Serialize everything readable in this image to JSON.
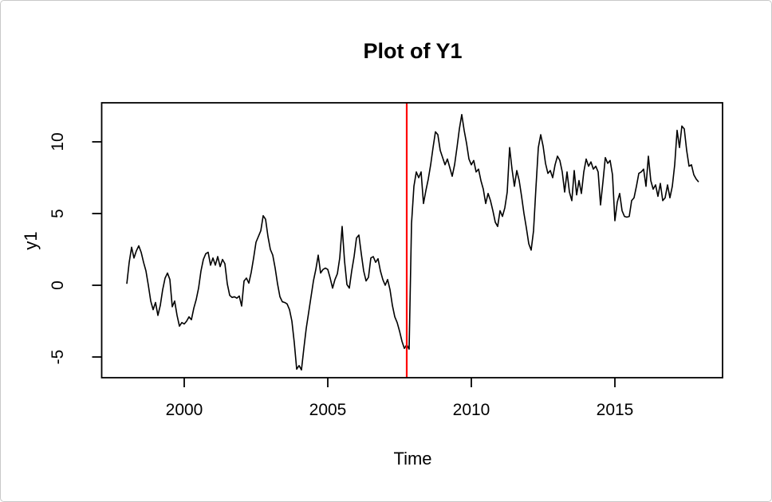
{
  "window": {
    "background": "#ffffff",
    "border_color": "#c9c9c9"
  },
  "chart_data": {
    "type": "line",
    "title": "Plot of Y1",
    "xlabel": "Time",
    "ylabel": "y1",
    "series_name": "y1",
    "line_color": "#000000",
    "axis_color": "#000000",
    "grid": false,
    "x_start": 1998.0,
    "frequency": 12,
    "x_ticks": [
      2000,
      2005,
      2010,
      2015
    ],
    "y_ticks": [
      -5,
      0,
      5,
      10
    ],
    "xlim": [
      1997.125,
      2018.75
    ],
    "ylim": [
      -6.444,
      12.722
    ],
    "vline": {
      "x": 2007.75,
      "color": "#FF0000",
      "label": "red-break-line"
    },
    "values": [
      0.1,
      1.6,
      2.65,
      1.9,
      2.4,
      2.75,
      2.3,
      1.6,
      1.0,
      0.0,
      -1.1,
      -1.7,
      -1.2,
      -2.1,
      -1.4,
      -0.3,
      0.5,
      0.85,
      0.4,
      -1.5,
      -1.1,
      -2.1,
      -2.85,
      -2.6,
      -2.7,
      -2.5,
      -2.2,
      -2.4,
      -1.6,
      -1.0,
      -0.2,
      1.0,
      1.8,
      2.2,
      2.3,
      1.4,
      1.9,
      1.4,
      2.0,
      1.3,
      1.8,
      1.5,
      0.1,
      -0.7,
      -0.85,
      -0.8,
      -0.9,
      -0.75,
      -1.45,
      0.3,
      0.5,
      0.15,
      0.9,
      1.9,
      3.0,
      3.4,
      3.8,
      4.85,
      4.6,
      3.4,
      2.5,
      2.1,
      1.2,
      0.1,
      -0.8,
      -1.15,
      -1.2,
      -1.3,
      -1.7,
      -2.5,
      -4.0,
      -5.85,
      -5.6,
      -5.9,
      -4.4,
      -3.0,
      -1.9,
      -0.8,
      0.3,
      1.1,
      2.1,
      0.85,
      1.1,
      1.2,
      1.1,
      0.5,
      -0.2,
      0.4,
      0.8,
      1.9,
      4.1,
      1.7,
      0.05,
      -0.2,
      1.0,
      2.0,
      3.3,
      3.5,
      2.2,
      1.0,
      0.3,
      0.55,
      1.9,
      2.0,
      1.6,
      1.85,
      1.0,
      0.4,
      0.0,
      0.4,
      -0.3,
      -1.4,
      -2.2,
      -2.6,
      -3.2,
      -3.9,
      -4.4,
      -4.15,
      -4.45,
      4.3,
      6.9,
      7.9,
      7.5,
      7.9,
      5.7,
      6.6,
      7.4,
      8.4,
      9.6,
      10.7,
      10.5,
      9.4,
      8.9,
      8.4,
      8.8,
      8.2,
      7.6,
      8.4,
      9.6,
      10.9,
      11.9,
      10.8,
      9.9,
      8.8,
      8.4,
      8.7,
      7.9,
      8.1,
      7.3,
      6.7,
      5.7,
      6.4,
      5.9,
      5.2,
      4.4,
      4.1,
      5.2,
      4.8,
      5.4,
      6.5,
      9.6,
      8.1,
      6.9,
      8.0,
      7.3,
      6.2,
      5.0,
      4.0,
      2.9,
      2.45,
      3.8,
      6.8,
      9.6,
      10.5,
      9.7,
      8.5,
      7.8,
      8.0,
      7.5,
      8.4,
      9.0,
      8.7,
      7.9,
      6.5,
      7.9,
      6.5,
      5.9,
      8.0,
      6.3,
      7.3,
      6.4,
      7.9,
      8.8,
      8.3,
      8.6,
      8.1,
      8.3,
      7.9,
      5.6,
      7.2,
      8.9,
      8.5,
      8.7,
      7.7,
      4.5,
      5.8,
      6.4,
      5.2,
      4.8,
      4.75,
      4.8,
      5.9,
      6.1,
      6.9,
      7.8,
      7.9,
      8.1,
      6.9,
      9.0,
      7.3,
      6.7,
      7.0,
      6.2,
      7.1,
      5.9,
      6.1,
      7.0,
      6.1,
      6.9,
      8.4,
      10.8,
      9.6,
      11.1,
      10.9,
      9.4,
      8.3,
      8.4,
      7.7,
      7.4,
      7.2
    ]
  }
}
